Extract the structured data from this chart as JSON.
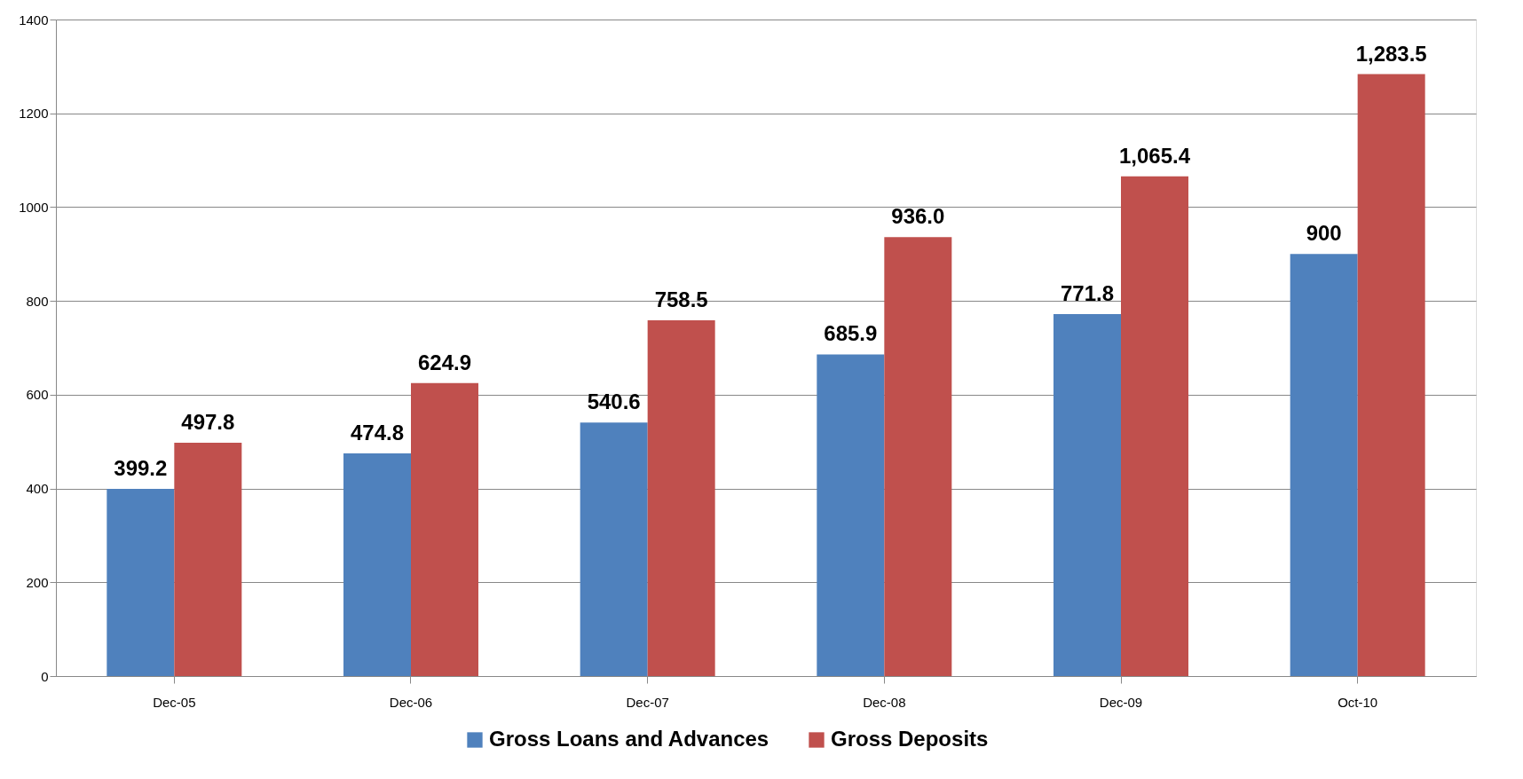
{
  "chart_data": {
    "type": "bar",
    "categories": [
      "Dec-05",
      "Dec-06",
      "Dec-07",
      "Dec-08",
      "Dec-09",
      "Oct-10"
    ],
    "series": [
      {
        "name": "Gross Loans and Advances",
        "color": "#4f81bd",
        "values": [
          399.2,
          474.8,
          540.6,
          685.9,
          771.8,
          900
        ],
        "value_labels": [
          "399.2",
          "474.8",
          "540.6",
          "685.9",
          "771.8",
          "900"
        ]
      },
      {
        "name": "Gross Deposits",
        "color": "#c0504d",
        "values": [
          497.8,
          624.9,
          758.5,
          936.0,
          1065.4,
          1283.5
        ],
        "value_labels": [
          "497.8",
          "624.9",
          "758.5",
          "936.0",
          "1,065.4",
          "1,283.5"
        ]
      }
    ],
    "ylim": [
      0,
      1400
    ],
    "yticks": [
      0,
      200,
      400,
      600,
      800,
      1000,
      1200,
      1400
    ],
    "grid": "y",
    "legend": "bottom"
  }
}
